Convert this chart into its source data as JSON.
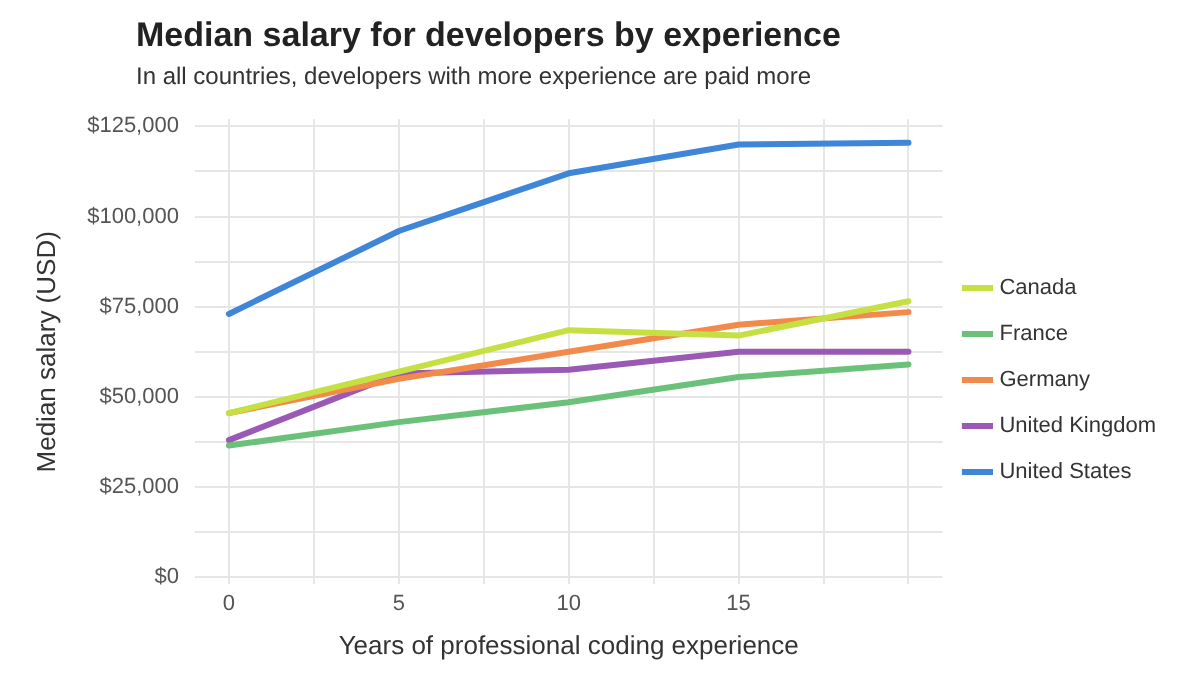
{
  "chart_data": {
    "type": "line",
    "title": "Median salary for developers by experience",
    "subtitle": "In all countries, developers with more experience are paid more",
    "xlabel": "Years of professional coding experience",
    "ylabel": "Median salary (USD)",
    "x": [
      0,
      5,
      10,
      15,
      20
    ],
    "series": [
      {
        "name": "Canada",
        "color": "#c5e043",
        "values": [
          45500,
          57000,
          68500,
          67000,
          76500
        ]
      },
      {
        "name": "France",
        "color": "#6cc17a",
        "values": [
          36500,
          43000,
          48500,
          55500,
          59000
        ]
      },
      {
        "name": "Germany",
        "color": "#f28a4c",
        "values": [
          45500,
          55000,
          62500,
          70000,
          73500
        ]
      },
      {
        "name": "United Kingdom",
        "color": "#9b59b6",
        "values": [
          38000,
          56500,
          57500,
          62500,
          62500
        ]
      },
      {
        "name": "United States",
        "color": "#3f86d9",
        "values": [
          73000,
          96000,
          112000,
          120000,
          120500
        ]
      }
    ],
    "xlim": [
      -1,
      21
    ],
    "xticks": [
      0,
      {
        "value": 2.5,
        "label": null
      },
      5,
      {
        "value": 7.5,
        "label": null
      },
      10,
      {
        "value": 12.5,
        "label": null
      },
      15,
      {
        "value": 17.5,
        "label": null
      },
      {
        "value": 20,
        "label": null
      }
    ],
    "ylim": [
      -2000,
      127000
    ],
    "yticks": [
      {
        "value": 0,
        "label": "$0"
      },
      {
        "value": 12500,
        "label": null
      },
      {
        "value": 25000,
        "label": "$25,000"
      },
      {
        "value": 37500,
        "label": null
      },
      {
        "value": 50000,
        "label": "$50,000"
      },
      {
        "value": 62500,
        "label": null
      },
      {
        "value": 75000,
        "label": "$75,000"
      },
      {
        "value": 87500,
        "label": null
      },
      {
        "value": 100000,
        "label": "$100,000"
      },
      {
        "value": 112500,
        "label": null
      },
      {
        "value": 125000,
        "label": "$125,000"
      }
    ],
    "grid": true,
    "legend": "right",
    "marker": "none",
    "line_style": "solid"
  }
}
